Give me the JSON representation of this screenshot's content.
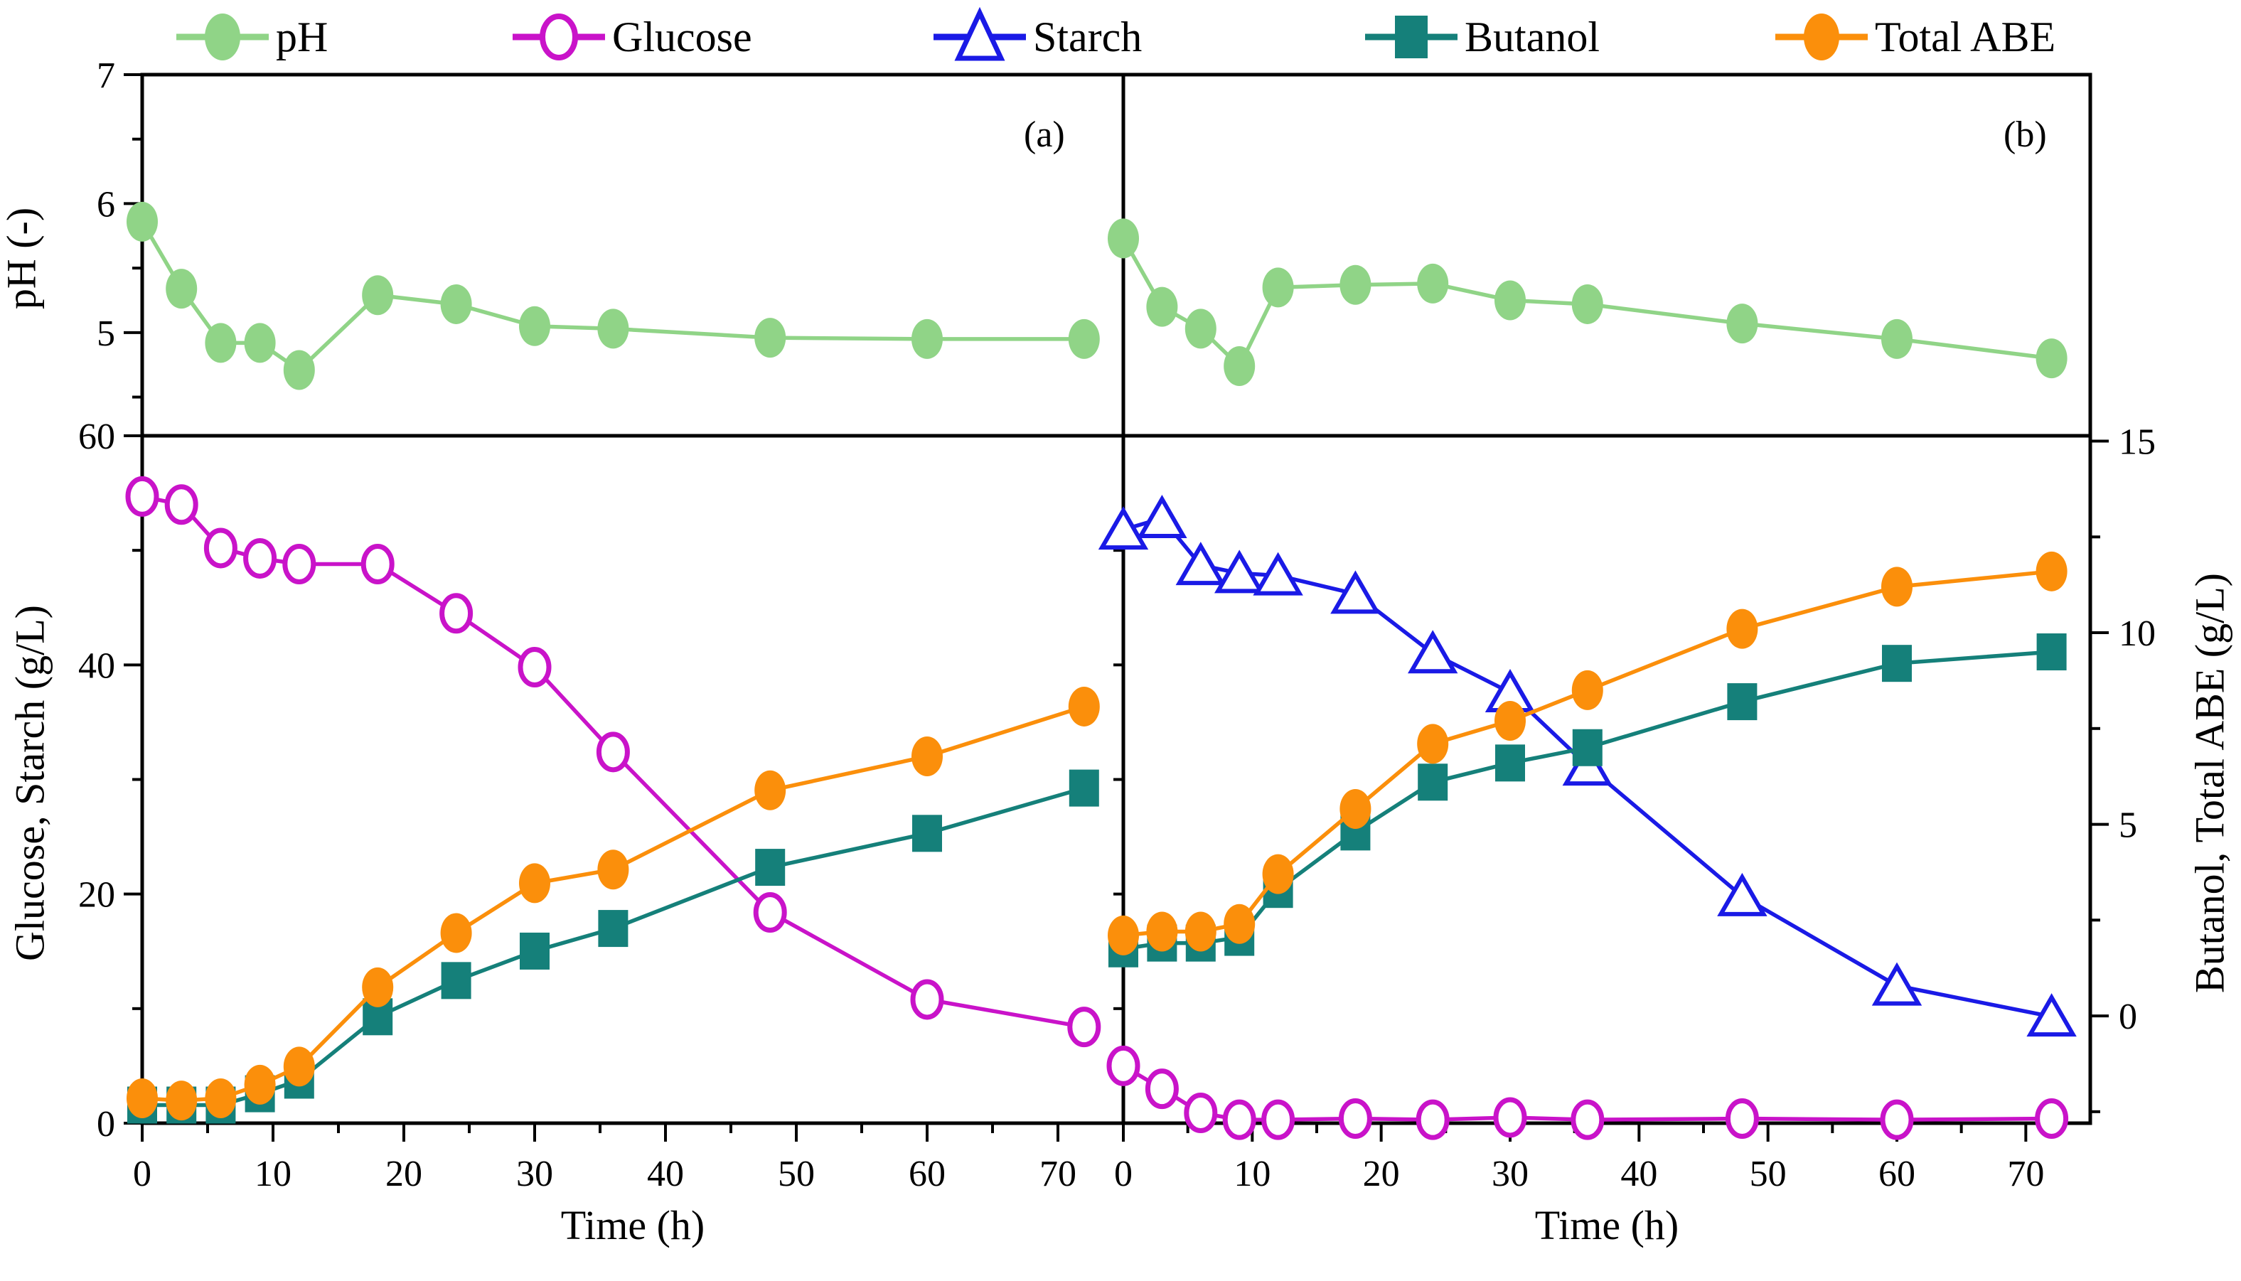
{
  "legend": {
    "items": [
      {
        "label": "pH",
        "marker": "circle",
        "color": "#90d487"
      },
      {
        "label": "Glucose",
        "marker": "open-circle",
        "color": "#c913c9"
      },
      {
        "label": "Starch",
        "marker": "triangle",
        "color": "#1a1ae6"
      },
      {
        "label": "Butanol",
        "marker": "square",
        "color": "#15807a"
      },
      {
        "label": "Total ABE",
        "marker": "circle",
        "color": "#fb8f0b"
      }
    ]
  },
  "axes": {
    "ph": {
      "label": "pH (-)",
      "range": [
        4.2,
        7.0
      ],
      "ticks": [
        5,
        6,
        7
      ],
      "minor": [
        4.5,
        5.5,
        6.5
      ]
    },
    "left": {
      "label": "Glucose, Starch (g/L)",
      "range": [
        0,
        60
      ],
      "ticks": [
        0,
        20,
        40,
        60
      ],
      "minor": [
        10,
        30,
        50
      ]
    },
    "rightA": {
      "label": "",
      "range": [
        0,
        15.18
      ],
      "ticks": [],
      "minor": []
    },
    "rightB": {
      "label": "Butanol, Total ABE (g/L)",
      "range": [
        -2.8,
        15.14
      ],
      "ticks": [
        0,
        5,
        10,
        15
      ],
      "minor": [
        -2.5,
        2.5,
        7.5,
        12.5
      ]
    },
    "x": {
      "label": "Time (h)",
      "range": [
        0,
        75
      ],
      "ticks": [
        0,
        10,
        20,
        30,
        40,
        50,
        60,
        70
      ],
      "minor": [
        5,
        15,
        25,
        35,
        45,
        55,
        65
      ]
    }
  },
  "chart_data": [
    {
      "panel": "a",
      "label": "(a)",
      "type": "line",
      "x": [
        0,
        3,
        6,
        9,
        12,
        18,
        24,
        30,
        36,
        48,
        60,
        72
      ],
      "series": [
        {
          "name": "pH",
          "axis": "ph",
          "row": "top",
          "marker": "circle",
          "color": "#90d487",
          "values": [
            5.86,
            5.34,
            4.92,
            4.92,
            4.71,
            5.29,
            5.22,
            5.05,
            5.03,
            4.96,
            4.95,
            4.95
          ]
        },
        {
          "name": "Glucose",
          "axis": "left",
          "row": "bottom",
          "marker": "open-circle",
          "color": "#c913c9",
          "values": [
            54.7,
            54.0,
            50.2,
            49.3,
            48.8,
            48.8,
            44.5,
            39.8,
            32.4,
            18.4,
            10.8,
            8.4
          ]
        },
        {
          "name": "Butanol",
          "axis": "rightA",
          "row": "bottom",
          "marker": "square",
          "color": "#15807a",
          "values": [
            0.4,
            0.4,
            0.4,
            0.65,
            0.95,
            2.35,
            3.15,
            3.8,
            4.3,
            5.65,
            6.4,
            7.4
          ]
        },
        {
          "name": "Total ABE",
          "axis": "rightA",
          "row": "bottom",
          "marker": "circle",
          "color": "#fb8f0b",
          "values": [
            0.55,
            0.5,
            0.55,
            0.85,
            1.25,
            3.0,
            4.2,
            5.3,
            5.6,
            7.35,
            8.1,
            9.2
          ]
        }
      ]
    },
    {
      "panel": "b",
      "label": "(b)",
      "type": "line",
      "x": [
        0,
        3,
        6,
        9,
        12,
        18,
        24,
        30,
        36,
        48,
        60,
        72
      ],
      "series": [
        {
          "name": "pH",
          "axis": "ph",
          "row": "top",
          "marker": "circle",
          "color": "#90d487",
          "values": [
            5.73,
            5.2,
            5.03,
            4.74,
            5.35,
            5.37,
            5.38,
            5.25,
            5.22,
            5.07,
            4.95,
            4.8
          ]
        },
        {
          "name": "Starch",
          "axis": "left",
          "row": "bottom",
          "marker": "triangle",
          "color": "#1a1ae6",
          "values": [
            51.8,
            52.8,
            48.7,
            48.0,
            47.8,
            46.2,
            41.0,
            37.6,
            31.2,
            19.8,
            12.0,
            9.3
          ]
        },
        {
          "name": "Glucose",
          "axis": "left",
          "row": "bottom",
          "marker": "open-circle",
          "color": "#c913c9",
          "values": [
            5.0,
            3.0,
            0.9,
            0.3,
            0.3,
            0.4,
            0.3,
            0.5,
            0.3,
            0.4,
            0.3,
            0.4
          ]
        },
        {
          "name": "Butanol",
          "axis": "rightB",
          "row": "bottom",
          "marker": "square",
          "color": "#15807a",
          "values": [
            1.75,
            1.9,
            1.9,
            2.05,
            3.3,
            4.8,
            6.1,
            6.6,
            7.0,
            8.2,
            9.2,
            9.5
          ]
        },
        {
          "name": "Total ABE",
          "axis": "rightB",
          "row": "bottom",
          "marker": "circle",
          "color": "#fb8f0b",
          "values": [
            2.1,
            2.2,
            2.2,
            2.4,
            3.7,
            5.4,
            7.1,
            7.7,
            8.5,
            10.1,
            11.2,
            11.6
          ]
        }
      ]
    }
  ]
}
